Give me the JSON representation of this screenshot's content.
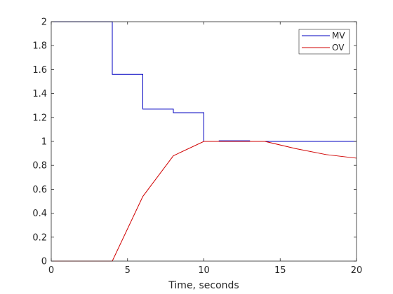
{
  "chart_data": {
    "type": "line",
    "xlabel": "Time, seconds",
    "ylabel": "",
    "title": "",
    "xlim": [
      0,
      20
    ],
    "ylim": [
      0,
      2
    ],
    "xticks": [
      0,
      5,
      10,
      15,
      20
    ],
    "yticks": [
      0,
      0.2,
      0.4,
      0.6,
      0.8,
      1,
      1.2,
      1.4,
      1.6,
      1.8,
      2
    ],
    "xtick_labels": [
      "0",
      "5",
      "10",
      "15",
      "20"
    ],
    "ytick_labels": [
      "0",
      "0.2",
      "0.4",
      "0.6",
      "0.8",
      "1",
      "1.2",
      "1.4",
      "1.6",
      "1.8",
      "2"
    ],
    "grid": false,
    "legend_position": "top-right",
    "series": [
      {
        "name": "MV",
        "color": "#0000c0",
        "step": true,
        "points": [
          [
            0,
            2
          ],
          [
            4,
            2
          ],
          [
            4,
            1.56
          ],
          [
            6,
            1.56
          ],
          [
            6,
            1.27
          ],
          [
            8,
            1.27
          ],
          [
            8,
            1.24
          ],
          [
            10,
            1.24
          ],
          [
            10,
            1.0
          ],
          [
            11,
            1.0
          ],
          [
            11,
            1.005
          ],
          [
            13,
            1.005
          ],
          [
            13,
            1.0
          ],
          [
            20,
            1.0
          ]
        ]
      },
      {
        "name": "OV",
        "color": "#d00000",
        "step": false,
        "points": [
          [
            0,
            0
          ],
          [
            4,
            0
          ],
          [
            6,
            0.54
          ],
          [
            8,
            0.88
          ],
          [
            10,
            1.0
          ],
          [
            12,
            1.0
          ],
          [
            14,
            1.0
          ],
          [
            16,
            0.94
          ],
          [
            18,
            0.89
          ],
          [
            20,
            0.86
          ]
        ]
      }
    ]
  }
}
